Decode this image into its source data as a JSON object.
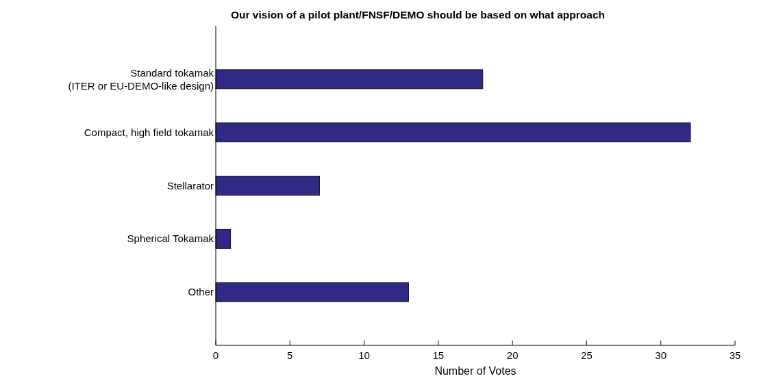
{
  "chart_data": {
    "type": "bar",
    "orientation": "horizontal",
    "title": "Our vision of a pilot plant/FNSF/DEMO should be based on what approach",
    "xlabel": "Number of Votes",
    "categories": [
      "Standard tokamak\n(ITER or EU-DEMO-like design)",
      "Compact, high field tokamak",
      "Stellarator",
      "Spherical Tokamak",
      "Other"
    ],
    "values": [
      18,
      32,
      7,
      1,
      13
    ],
    "color": "#312a84",
    "xlim": [
      0,
      35
    ],
    "xticks": [
      0,
      5,
      10,
      15,
      20,
      25,
      30,
      35
    ],
    "grid": false
  }
}
